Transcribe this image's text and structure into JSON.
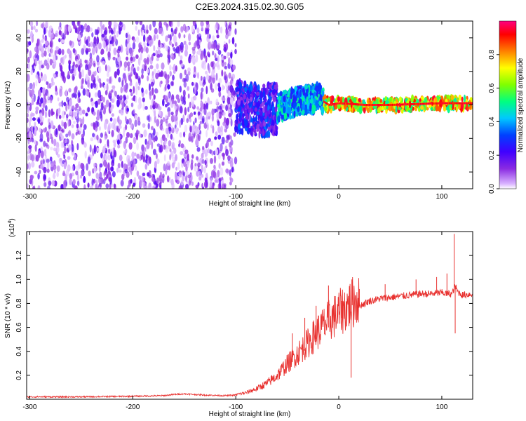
{
  "page_title": "C2E3.2024.315.02.30.G05",
  "chart_data": [
    {
      "type": "heatmap",
      "xlabel": "Height of straight line (km)",
      "ylabel": "Frequency (Hz)",
      "xlim": [
        -303,
        130
      ],
      "ylim": [
        -50,
        50
      ],
      "x_ticks": [
        -300,
        -200,
        -100,
        0,
        100
      ],
      "y_ticks": [
        -40,
        -20,
        0,
        20,
        40
      ],
      "colorbar": {
        "label": "Normalized spectral amplitude",
        "range": [
          0.0,
          1.0
        ],
        "ticks": [
          "0.0",
          "0.2",
          "0.4",
          "0.6",
          "0.8"
        ],
        "tick_values": [
          0.0,
          0.2,
          0.4,
          0.6,
          0.8
        ],
        "colors": [
          "#ffffff",
          "#d9b3ff",
          "#8a2be2",
          "#4000ff",
          "#0040ff",
          "#00c8ff",
          "#00ff80",
          "#80ff00",
          "#ffff00",
          "#ff8000",
          "#ff0000",
          "#ff0080"
        ]
      },
      "regions": [
        {
          "x": [
            -303,
            -100
          ],
          "y": [
            -50,
            50
          ],
          "amplitude": [
            0.05,
            0.25
          ]
        },
        {
          "x": [
            -100,
            -60
          ],
          "y": [
            -15,
            15
          ],
          "amplitude": [
            0.15,
            0.4
          ]
        },
        {
          "x": [
            -60,
            -15
          ],
          "y": [
            -8,
            8
          ],
          "amplitude": [
            0.3,
            0.55
          ]
        },
        {
          "x": [
            -15,
            130
          ],
          "y": [
            -3,
            4
          ],
          "amplitude": [
            0.5,
            0.95
          ]
        }
      ],
      "ridge": [
        [
          -200,
          1
        ],
        [
          -150,
          2
        ],
        [
          -100,
          0
        ],
        [
          -75,
          -4
        ],
        [
          -60,
          -2
        ],
        [
          -40,
          2
        ],
        [
          -30,
          3
        ],
        [
          -20,
          4
        ],
        [
          -10,
          0
        ],
        [
          0,
          1
        ],
        [
          25,
          0
        ],
        [
          50,
          0
        ],
        [
          100,
          1
        ],
        [
          130,
          1
        ]
      ]
    },
    {
      "type": "line",
      "xlabel": "Height of straight line (km)",
      "ylabel": "SNR (10 * v/v)",
      "y_scale_label": "(x10",
      "y_scale_exp": "4",
      "y_scale_close": ")",
      "xlim": [
        -303,
        130
      ],
      "ylim": [
        0.0,
        1.4
      ],
      "x_ticks": [
        -300,
        -200,
        -100,
        0,
        100
      ],
      "y_ticks": [
        0.2,
        0.4,
        0.6,
        0.8,
        1.0,
        1.2
      ],
      "y_tick_labels": [
        "0.2",
        "0.4",
        "0.6",
        "0.8",
        "1.0",
        "1.2"
      ],
      "color": "#e8312f",
      "series": [
        {
          "values": [
            [
              -303,
              0.02
            ],
            [
              -250,
              0.02
            ],
            [
              -200,
              0.025
            ],
            [
              -170,
              0.03
            ],
            [
              -160,
              0.04
            ],
            [
              -150,
              0.045
            ],
            [
              -130,
              0.035
            ],
            [
              -110,
              0.03
            ],
            [
              -100,
              0.035
            ],
            [
              -90,
              0.05
            ],
            [
              -80,
              0.08
            ],
            [
              -70,
              0.12
            ],
            [
              -60,
              0.18
            ],
            [
              -50,
              0.27
            ],
            [
              -40,
              0.35
            ],
            [
              -30,
              0.43
            ],
            [
              -20,
              0.52
            ],
            [
              -10,
              0.6
            ],
            [
              0,
              0.66
            ],
            [
              10,
              0.72
            ],
            [
              20,
              0.78
            ],
            [
              30,
              0.82
            ],
            [
              40,
              0.84
            ],
            [
              50,
              0.85
            ],
            [
              60,
              0.86
            ],
            [
              70,
              0.87
            ],
            [
              80,
              0.88
            ],
            [
              90,
              0.88
            ],
            [
              100,
              0.89
            ],
            [
              105,
              0.88
            ],
            [
              110,
              0.88
            ],
            [
              113,
              0.95
            ],
            [
              115,
              0.9
            ],
            [
              120,
              0.87
            ],
            [
              130,
              0.88
            ]
          ],
          "spikes": [
            [
              -45,
              0.55
            ],
            [
              -33,
              0.68
            ],
            [
              -22,
              0.78
            ],
            [
              -10,
              0.95
            ],
            [
              3,
              0.82
            ],
            [
              12,
              0.18
            ],
            [
              20,
              0.92
            ],
            [
              45,
              0.96
            ],
            [
              75,
              1.0
            ],
            [
              95,
              1.02
            ],
            [
              105,
              1.05
            ],
            [
              112,
              1.38
            ],
            [
              113,
              0.55
            ]
          ]
        }
      ]
    }
  ]
}
